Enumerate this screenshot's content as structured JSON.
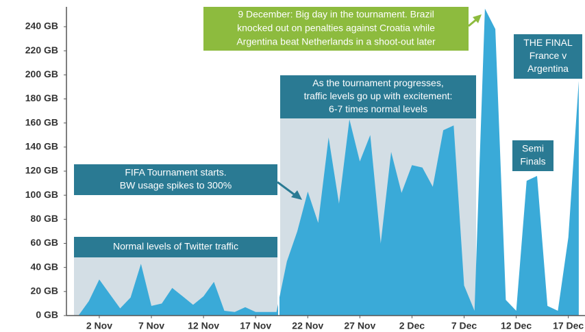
{
  "chart_data": {
    "type": "area",
    "color": "#3aaad8",
    "x": [
      0,
      1,
      2,
      3,
      4,
      5,
      6,
      7,
      8,
      9,
      10,
      11,
      12,
      13,
      14,
      15,
      16,
      17,
      18,
      19,
      20,
      21,
      22,
      23,
      24,
      25,
      26,
      27,
      28,
      29,
      30,
      31,
      32,
      33,
      34,
      35,
      36,
      37,
      38,
      39,
      40,
      41,
      42,
      43,
      44,
      45,
      46,
      47,
      48
    ],
    "values": [
      0,
      12,
      30,
      18,
      6,
      15,
      43,
      8,
      10,
      23,
      16,
      9,
      16,
      28,
      4,
      3,
      7,
      3,
      3,
      3,
      45,
      70,
      103,
      77,
      148,
      93,
      163,
      128,
      150,
      60,
      136,
      102,
      125,
      123,
      107,
      154,
      158,
      25,
      4,
      255,
      238,
      13,
      4,
      112,
      116,
      8,
      4,
      65,
      195
    ],
    "xlim": [
      -1.15,
      48.6
    ],
    "xticks": [
      {
        "value": 2,
        "label": "2 Nov"
      },
      {
        "value": 7,
        "label": "7 Nov"
      },
      {
        "value": 12,
        "label": "12 Nov"
      },
      {
        "value": 17,
        "label": "17 Nov"
      },
      {
        "value": 22,
        "label": "22 Nov"
      },
      {
        "value": 27,
        "label": "27 Nov"
      },
      {
        "value": 32,
        "label": "2 Dec"
      },
      {
        "value": 37,
        "label": "7 Dec"
      },
      {
        "value": 42,
        "label": "12 Dec"
      },
      {
        "value": 47,
        "label": "17 Dec"
      }
    ],
    "ylim": [
      0,
      256.5
    ],
    "yticks": [
      {
        "value": 0,
        "label": "0 GB"
      },
      {
        "value": 20,
        "label": "20 GB"
      },
      {
        "value": 40,
        "label": "40 GB"
      },
      {
        "value": 60,
        "label": "60 GB"
      },
      {
        "value": 80,
        "label": "80 GB"
      },
      {
        "value": 100,
        "label": "100 GB"
      },
      {
        "value": 120,
        "label": "120 GB"
      },
      {
        "value": 140,
        "label": "140 GB"
      },
      {
        "value": 160,
        "label": "160 GB"
      },
      {
        "value": 180,
        "label": "180 GB"
      },
      {
        "value": 200,
        "label": "200 GB"
      },
      {
        "value": 220,
        "label": "220 GB"
      },
      {
        "value": 240,
        "label": "240 GB"
      }
    ],
    "annotations": [
      {
        "lines": [
          "Normal levels of Twitter traffic"
        ]
      },
      {
        "lines": [
          "As the tournament progresses,",
          "traffic levels go up with excitement:",
          "6-7 times normal levels"
        ]
      },
      {
        "lines": [
          "FIFA Tournament starts.",
          "BW usage spikes to 300%"
        ]
      },
      {
        "lines": [
          "9 December: Big day in the tournament. Brazil",
          "knocked out on penalties against Croatia while",
          "Argentina beat Netherlands in a shoot-out later"
        ]
      },
      {
        "lines": [
          "THE FINAL",
          "France v",
          "Argentina"
        ]
      },
      {
        "lines": [
          "Semi",
          "Finals"
        ]
      }
    ]
  }
}
